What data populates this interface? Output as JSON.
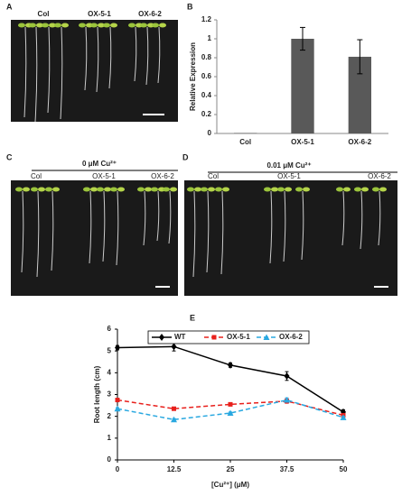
{
  "panels": {
    "A": {
      "letter": "A",
      "labels": [
        "Col",
        "OX-5-1",
        "OX-6-2"
      ]
    },
    "C": {
      "letter": "C",
      "condition": "0 μM Cu²⁺",
      "labels": [
        "Col",
        "OX-5-1",
        "OX-6-2"
      ]
    },
    "D": {
      "letter": "D",
      "condition": "0.01 μM Cu²⁺",
      "labels": [
        "Col",
        "OX-5-1",
        "OX-6-2"
      ]
    }
  },
  "chart_data": [
    {
      "type": "bar",
      "letter": "B",
      "ylabel": "Relative  Expression",
      "categories": [
        "Col",
        "OX-5-1",
        "OX-6-2"
      ],
      "values": [
        0.005,
        1.0,
        0.81
      ],
      "errors": [
        0.0,
        0.12,
        0.18
      ],
      "color": "#595959",
      "ylim": [
        0,
        1.2
      ],
      "yticks": [
        0,
        0.2,
        0.4,
        0.6,
        0.8,
        1,
        1.2
      ]
    },
    {
      "type": "line",
      "letter": "E",
      "xlabel": "[Cu²⁺] (μM)",
      "ylabel": "Root length (cm)",
      "x": [
        0,
        12.5,
        25,
        37.5,
        50
      ],
      "xlim": [
        0,
        50
      ],
      "xticks": [
        0,
        12.5,
        25,
        37.5,
        50
      ],
      "ylim": [
        0,
        6
      ],
      "yticks": [
        0,
        1,
        2,
        3,
        4,
        5,
        6
      ],
      "legend": "top",
      "series": [
        {
          "name": "WT",
          "color": "#000000",
          "values": [
            5.15,
            5.2,
            4.35,
            3.85,
            2.2
          ],
          "errors": [
            0.1,
            0.2,
            0.1,
            0.2,
            0.1
          ]
        },
        {
          "name": "OX-5-1",
          "color": "#e8201c",
          "values": [
            2.75,
            2.35,
            2.55,
            2.7,
            2.05
          ],
          "errors": [
            0.05,
            0.05,
            0.05,
            0.1,
            0.05
          ]
        },
        {
          "name": "OX-6-2",
          "color": "#29a8e0",
          "values": [
            2.35,
            1.85,
            2.15,
            2.75,
            1.95
          ],
          "errors": [
            0.05,
            0.05,
            0.05,
            0.1,
            0.05
          ]
        }
      ]
    }
  ]
}
